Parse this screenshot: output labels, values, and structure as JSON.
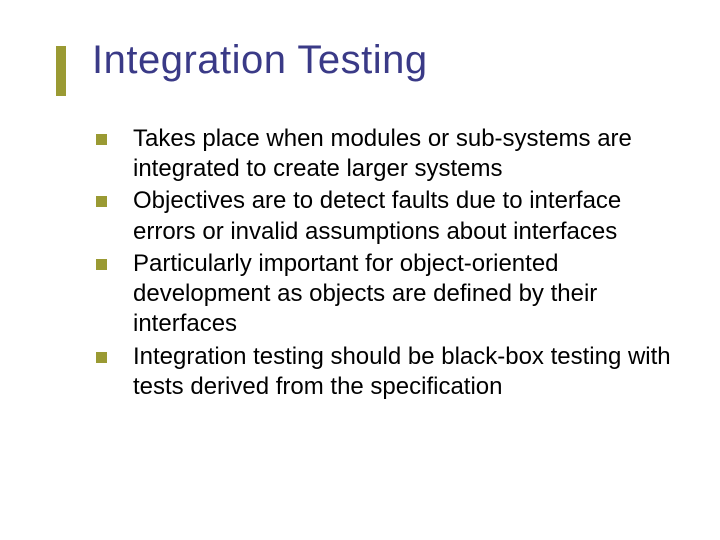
{
  "slide": {
    "title": "Integration Testing",
    "title_color": "#3a3a87",
    "title_fontsize": 40,
    "accent_color": "#9a9a33",
    "body_fontsize": 24,
    "body_color": "#000000",
    "background_color": "#ffffff",
    "bullet_shape": "square",
    "bullet_size": 11,
    "bullets": [
      "Takes place when modules or sub-systems are integrated to create larger systems",
      "Objectives are to detect faults due to interface errors or invalid assumptions about interfaces",
      "Particularly important for object-oriented development as objects are defined by their interfaces",
      "Integration testing should be black-box testing with tests derived from the specification"
    ]
  }
}
